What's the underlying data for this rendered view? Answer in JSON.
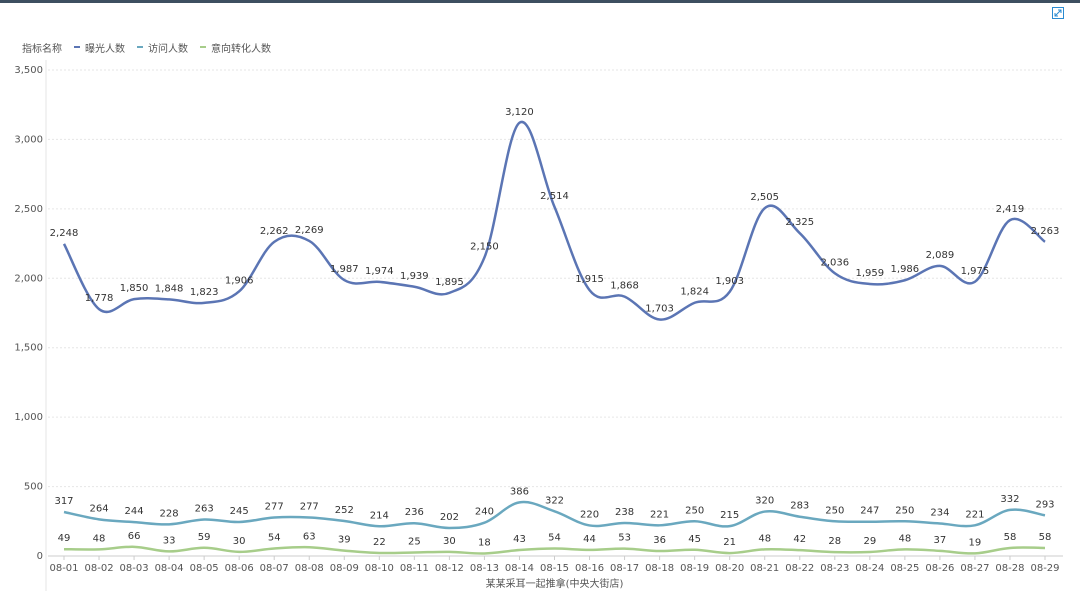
{
  "header": {
    "expand_icon": "expand-icon"
  },
  "legend": {
    "title": "指标名称",
    "items": [
      "曝光人数",
      "访问人数",
      "意向转化人数"
    ]
  },
  "colors": {
    "series1": "#5b75b4",
    "series2": "#6aa8bf",
    "series3": "#a7cd8a",
    "grid": "#e6e6e6",
    "axis": "#cccccc"
  },
  "chart_data": {
    "type": "line",
    "xlabel": "某某采耳一起推拿(中央大街店)",
    "ylabel": "",
    "ylim": [
      0,
      3500
    ],
    "yticks": [
      0,
      500,
      1000,
      1500,
      2000,
      2500,
      3000,
      3500
    ],
    "ytick_labels": [
      "0",
      "500",
      "1,000",
      "1,500",
      "2,000",
      "2,500",
      "3,000",
      "3,500"
    ],
    "grid": true,
    "legend": "top-left",
    "categories": [
      "08-01",
      "08-02",
      "08-03",
      "08-04",
      "08-05",
      "08-06",
      "08-07",
      "08-08",
      "08-09",
      "08-10",
      "08-11",
      "08-12",
      "08-13",
      "08-14",
      "08-15",
      "08-16",
      "08-17",
      "08-18",
      "08-19",
      "08-20",
      "08-21",
      "08-22",
      "08-23",
      "08-24",
      "08-25",
      "08-26",
      "08-27",
      "08-28",
      "08-29"
    ],
    "series": [
      {
        "name": "曝光人数",
        "values": [
          2248,
          1778,
          1850,
          1848,
          1823,
          1906,
          2262,
          2269,
          1987,
          1974,
          1939,
          1895,
          2150,
          3120,
          2514,
          1915,
          1868,
          1703,
          1824,
          1903,
          2505,
          2325,
          2036,
          1959,
          1986,
          2089,
          1975,
          2419,
          2263
        ]
      },
      {
        "name": "访问人数",
        "values": [
          317,
          264,
          244,
          228,
          263,
          245,
          277,
          277,
          252,
          214,
          236,
          202,
          240,
          386,
          322,
          220,
          238,
          221,
          250,
          215,
          320,
          283,
          250,
          247,
          250,
          234,
          221,
          332,
          293
        ]
      },
      {
        "name": "意向转化人数",
        "values": [
          49,
          48,
          66,
          33,
          59,
          30,
          54,
          63,
          39,
          22,
          25,
          30,
          18,
          43,
          54,
          44,
          53,
          36,
          45,
          21,
          48,
          42,
          28,
          29,
          48,
          37,
          19,
          58,
          58
        ]
      }
    ]
  }
}
